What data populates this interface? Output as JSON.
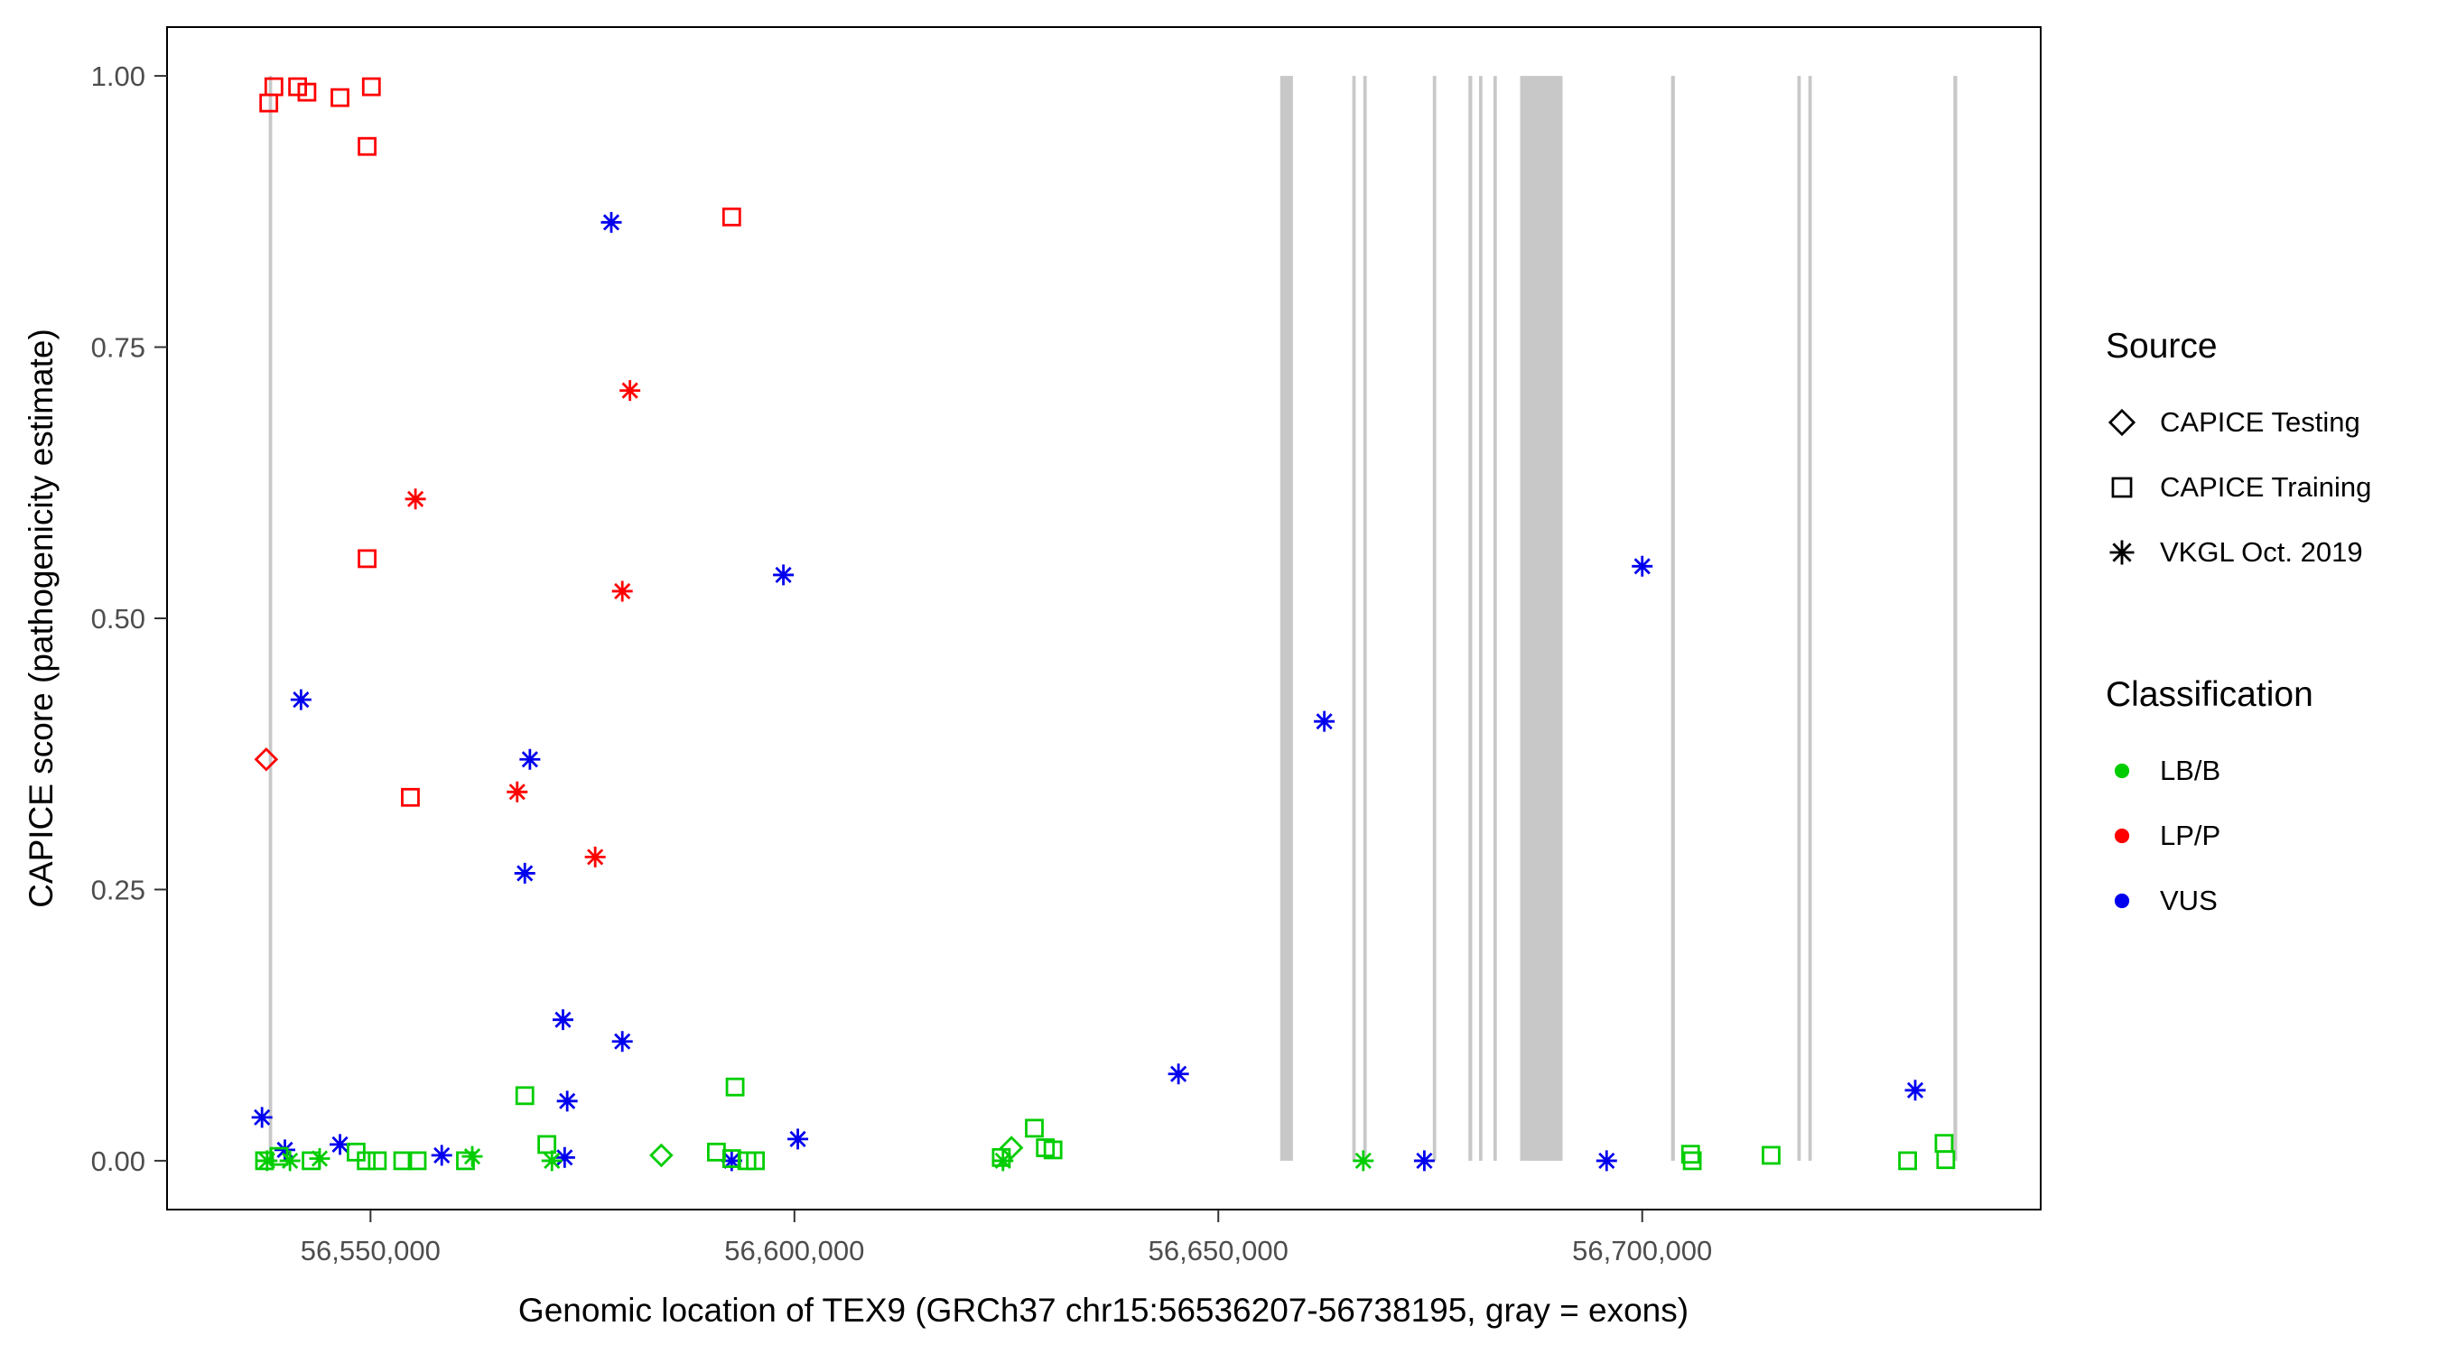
{
  "chart_data": {
    "type": "scatter",
    "title": "",
    "xlabel": "Genomic location of TEX9 (GRCh37 chr15:56536207-56738195, gray = exons)",
    "ylabel": "CAPICE score (pathogenicity estimate)",
    "xlim": [
      56526000,
      56747000
    ],
    "ylim": [
      -0.045,
      1.045
    ],
    "grid": "off",
    "panel_border": "on",
    "x_ticks": [
      {
        "value": 56550000,
        "label": "56,550,000"
      },
      {
        "value": 56600000,
        "label": "56,600,000"
      },
      {
        "value": 56650000,
        "label": "56,650,000"
      },
      {
        "value": 56700000,
        "label": "56,700,000"
      }
    ],
    "y_ticks": [
      {
        "value": 0.0,
        "label": "0.00"
      },
      {
        "value": 0.25,
        "label": "0.25"
      },
      {
        "value": 0.5,
        "label": "0.50"
      },
      {
        "value": 0.75,
        "label": "0.75"
      },
      {
        "value": 1.0,
        "label": "1.00"
      }
    ],
    "exon_color": "#C8C8C8",
    "exons": [
      [
        56538000,
        56538400
      ],
      [
        56657300,
        56658800
      ],
      [
        56665800,
        56666200
      ],
      [
        56667100,
        56667500
      ],
      [
        56675300,
        56675700
      ],
      [
        56679500,
        56679950
      ],
      [
        56680750,
        56681150
      ],
      [
        56682450,
        56682850
      ],
      [
        56685600,
        56690600
      ],
      [
        56703400,
        56703850
      ],
      [
        56718300,
        56718700
      ],
      [
        56719600,
        56720000
      ],
      [
        56736700,
        56737150
      ]
    ],
    "colors": {
      "LB/B": "#00CD00",
      "LP/P": "#FF0000",
      "VUS": "#0000EE"
    },
    "shapes": {
      "CAPICE Testing": "diamond",
      "CAPICE Training": "square",
      "VKGL Oct. 2019": "asterisk"
    },
    "source_legend": {
      "title": "Source",
      "items": [
        {
          "label": "CAPICE Testing",
          "shape": "diamond"
        },
        {
          "label": "CAPICE Training",
          "shape": "square"
        },
        {
          "label": "VKGL Oct. 2019",
          "shape": "asterisk"
        }
      ]
    },
    "class_legend": {
      "title": "Classification",
      "items": [
        {
          "label": "LB/B",
          "color": "#00CD00"
        },
        {
          "label": "LP/P",
          "color": "#FF0000"
        },
        {
          "label": "VUS",
          "color": "#0000EE"
        }
      ]
    },
    "points": [
      {
        "x": 56538000,
        "y": 0.975,
        "source": "CAPICE Training",
        "classification": "LP/P"
      },
      {
        "x": 56538600,
        "y": 0.99,
        "source": "CAPICE Training",
        "classification": "LP/P"
      },
      {
        "x": 56541400,
        "y": 0.99,
        "source": "CAPICE Training",
        "classification": "LP/P"
      },
      {
        "x": 56542500,
        "y": 0.985,
        "source": "CAPICE Training",
        "classification": "LP/P"
      },
      {
        "x": 56546400,
        "y": 0.98,
        "source": "CAPICE Training",
        "classification": "LP/P"
      },
      {
        "x": 56550100,
        "y": 0.99,
        "source": "CAPICE Training",
        "classification": "LP/P"
      },
      {
        "x": 56549600,
        "y": 0.935,
        "source": "CAPICE Training",
        "classification": "LP/P"
      },
      {
        "x": 56549600,
        "y": 0.555,
        "source": "CAPICE Training",
        "classification": "LP/P"
      },
      {
        "x": 56554700,
        "y": 0.335,
        "source": "CAPICE Training",
        "classification": "LP/P"
      },
      {
        "x": 56592600,
        "y": 0.87,
        "source": "CAPICE Training",
        "classification": "LP/P"
      },
      {
        "x": 56537700,
        "y": 0.37,
        "source": "CAPICE Testing",
        "classification": "LP/P"
      },
      {
        "x": 56555300,
        "y": 0.61,
        "source": "VKGL Oct. 2019",
        "classification": "LP/P"
      },
      {
        "x": 56580600,
        "y": 0.71,
        "source": "VKGL Oct. 2019",
        "classification": "LP/P"
      },
      {
        "x": 56579700,
        "y": 0.525,
        "source": "VKGL Oct. 2019",
        "classification": "LP/P"
      },
      {
        "x": 56567300,
        "y": 0.34,
        "source": "VKGL Oct. 2019",
        "classification": "LP/P"
      },
      {
        "x": 56576500,
        "y": 0.28,
        "source": "VKGL Oct. 2019",
        "classification": "LP/P"
      },
      {
        "x": 56541800,
        "y": 0.425,
        "source": "VKGL Oct. 2019",
        "classification": "VUS"
      },
      {
        "x": 56578400,
        "y": 0.865,
        "source": "VKGL Oct. 2019",
        "classification": "VUS"
      },
      {
        "x": 56598700,
        "y": 0.54,
        "source": "VKGL Oct. 2019",
        "classification": "VUS"
      },
      {
        "x": 56568800,
        "y": 0.37,
        "source": "VKGL Oct. 2019",
        "classification": "VUS"
      },
      {
        "x": 56568200,
        "y": 0.265,
        "source": "VKGL Oct. 2019",
        "classification": "VUS"
      },
      {
        "x": 56572700,
        "y": 0.13,
        "source": "VKGL Oct. 2019",
        "classification": "VUS"
      },
      {
        "x": 56579700,
        "y": 0.11,
        "source": "VKGL Oct. 2019",
        "classification": "VUS"
      },
      {
        "x": 56573200,
        "y": 0.055,
        "source": "VKGL Oct. 2019",
        "classification": "VUS"
      },
      {
        "x": 56537200,
        "y": 0.04,
        "source": "VKGL Oct. 2019",
        "classification": "VUS"
      },
      {
        "x": 56645300,
        "y": 0.08,
        "source": "VKGL Oct. 2019",
        "classification": "VUS"
      },
      {
        "x": 56662500,
        "y": 0.405,
        "source": "VKGL Oct. 2019",
        "classification": "VUS"
      },
      {
        "x": 56700000,
        "y": 0.548,
        "source": "VKGL Oct. 2019",
        "classification": "VUS"
      },
      {
        "x": 56732200,
        "y": 0.065,
        "source": "VKGL Oct. 2019",
        "classification": "VUS"
      },
      {
        "x": 56539900,
        "y": 0.01,
        "source": "VKGL Oct. 2019",
        "classification": "VUS"
      },
      {
        "x": 56546400,
        "y": 0.015,
        "source": "VKGL Oct. 2019",
        "classification": "VUS"
      },
      {
        "x": 56558400,
        "y": 0.005,
        "source": "VKGL Oct. 2019",
        "classification": "VUS"
      },
      {
        "x": 56572900,
        "y": 0.003,
        "source": "VKGL Oct. 2019",
        "classification": "VUS"
      },
      {
        "x": 56592600,
        "y": 0.0,
        "source": "VKGL Oct. 2019",
        "classification": "VUS"
      },
      {
        "x": 56600400,
        "y": 0.02,
        "source": "VKGL Oct. 2019",
        "classification": "VUS"
      },
      {
        "x": 56674300,
        "y": 0.0,
        "source": "VKGL Oct. 2019",
        "classification": "VUS"
      },
      {
        "x": 56695800,
        "y": 0.0,
        "source": "VKGL Oct. 2019",
        "classification": "VUS"
      },
      {
        "x": 56537500,
        "y": 0.0,
        "source": "CAPICE Training",
        "classification": "LB/B"
      },
      {
        "x": 56539200,
        "y": 0.004,
        "source": "CAPICE Training",
        "classification": "LB/B"
      },
      {
        "x": 56543000,
        "y": 0.0,
        "source": "CAPICE Training",
        "classification": "LB/B"
      },
      {
        "x": 56548300,
        "y": 0.008,
        "source": "CAPICE Training",
        "classification": "LB/B"
      },
      {
        "x": 56549500,
        "y": 0.0,
        "source": "CAPICE Training",
        "classification": "LB/B"
      },
      {
        "x": 56550800,
        "y": 0.0,
        "source": "CAPICE Training",
        "classification": "LB/B"
      },
      {
        "x": 56553800,
        "y": 0.0,
        "source": "CAPICE Training",
        "classification": "LB/B"
      },
      {
        "x": 56555500,
        "y": 0.0,
        "source": "CAPICE Training",
        "classification": "LB/B"
      },
      {
        "x": 56561200,
        "y": 0.0,
        "source": "CAPICE Training",
        "classification": "LB/B"
      },
      {
        "x": 56568200,
        "y": 0.06,
        "source": "CAPICE Training",
        "classification": "LB/B"
      },
      {
        "x": 56570800,
        "y": 0.015,
        "source": "CAPICE Training",
        "classification": "LB/B"
      },
      {
        "x": 56590800,
        "y": 0.008,
        "source": "CAPICE Training",
        "classification": "LB/B"
      },
      {
        "x": 56592600,
        "y": 0.002,
        "source": "CAPICE Training",
        "classification": "LB/B"
      },
      {
        "x": 56594400,
        "y": 0.0,
        "source": "CAPICE Training",
        "classification": "LB/B"
      },
      {
        "x": 56593000,
        "y": 0.068,
        "source": "CAPICE Training",
        "classification": "LB/B"
      },
      {
        "x": 56595400,
        "y": 0.0,
        "source": "CAPICE Training",
        "classification": "LB/B"
      },
      {
        "x": 56624400,
        "y": 0.003,
        "source": "CAPICE Training",
        "classification": "LB/B"
      },
      {
        "x": 56628300,
        "y": 0.03,
        "source": "CAPICE Training",
        "classification": "LB/B"
      },
      {
        "x": 56629600,
        "y": 0.012,
        "source": "CAPICE Training",
        "classification": "LB/B"
      },
      {
        "x": 56630500,
        "y": 0.01,
        "source": "CAPICE Training",
        "classification": "LB/B"
      },
      {
        "x": 56705700,
        "y": 0.006,
        "source": "CAPICE Training",
        "classification": "LB/B"
      },
      {
        "x": 56705900,
        "y": 0.0,
        "source": "CAPICE Training",
        "classification": "LB/B"
      },
      {
        "x": 56715200,
        "y": 0.005,
        "source": "CAPICE Training",
        "classification": "LB/B"
      },
      {
        "x": 56731300,
        "y": 0.0,
        "source": "CAPICE Training",
        "classification": "LB/B"
      },
      {
        "x": 56735600,
        "y": 0.016,
        "source": "CAPICE Training",
        "classification": "LB/B"
      },
      {
        "x": 56735800,
        "y": 0.001,
        "source": "CAPICE Training",
        "classification": "LB/B"
      },
      {
        "x": 56584300,
        "y": 0.005,
        "source": "CAPICE Testing",
        "classification": "LB/B"
      },
      {
        "x": 56625600,
        "y": 0.012,
        "source": "CAPICE Testing",
        "classification": "LB/B"
      },
      {
        "x": 56537800,
        "y": 0.0,
        "source": "VKGL Oct. 2019",
        "classification": "LB/B"
      },
      {
        "x": 56540500,
        "y": 0.0,
        "source": "VKGL Oct. 2019",
        "classification": "LB/B"
      },
      {
        "x": 56544000,
        "y": 0.002,
        "source": "VKGL Oct. 2019",
        "classification": "LB/B"
      },
      {
        "x": 56562000,
        "y": 0.004,
        "source": "VKGL Oct. 2019",
        "classification": "LB/B"
      },
      {
        "x": 56571400,
        "y": 0.0,
        "source": "VKGL Oct. 2019",
        "classification": "LB/B"
      },
      {
        "x": 56624600,
        "y": 0.0,
        "source": "VKGL Oct. 2019",
        "classification": "LB/B"
      },
      {
        "x": 56667100,
        "y": 0.0,
        "source": "VKGL Oct. 2019",
        "classification": "LB/B"
      }
    ]
  }
}
